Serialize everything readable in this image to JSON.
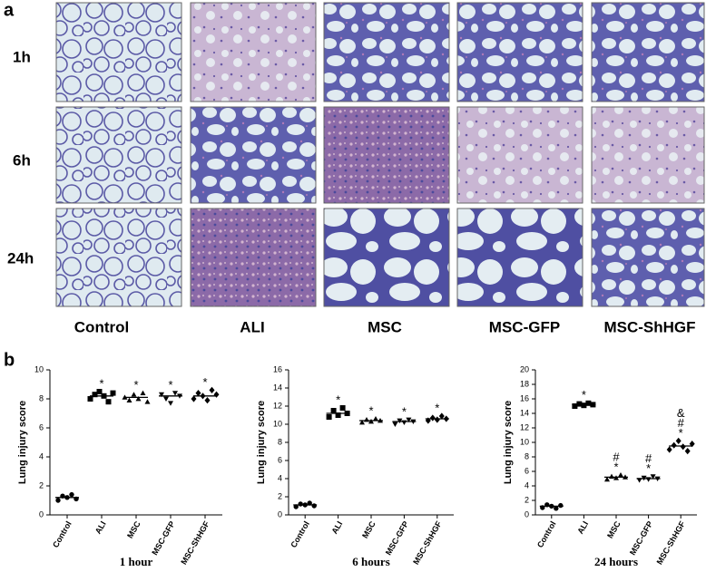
{
  "panel_a": {
    "label": "a",
    "rows": [
      "1h",
      "6h",
      "24h"
    ],
    "columns": [
      "Control",
      "ALI",
      "MSC",
      "MSC-GFP",
      "MSC-ShHGF"
    ]
  },
  "panel_b": {
    "label": "b"
  },
  "chart_data": [
    {
      "type": "dot",
      "xlabel": "1 hour",
      "ylabel": "Lung injury score",
      "categories": [
        "Control",
        "ALI",
        "MSC",
        "MSC-GFP",
        "MSC-ShHGF"
      ],
      "markers": [
        "circle",
        "square",
        "triangle",
        "triangle-down",
        "diamond"
      ],
      "color": "#000000",
      "values": [
        [
          1.0,
          1.3,
          1.2,
          1.4,
          1.1
        ],
        [
          8.0,
          8.3,
          8.5,
          8.2,
          7.8,
          8.4
        ],
        [
          8.1,
          7.9,
          8.3,
          8.0,
          8.4,
          7.8
        ],
        [
          8.3,
          8.0,
          7.7,
          8.4,
          8.2
        ],
        [
          8.0,
          8.4,
          8.2,
          7.9,
          8.6,
          8.3
        ]
      ],
      "means": [
        1.2,
        8.2,
        8.1,
        8.2,
        8.2
      ],
      "annotations": [
        null,
        [
          "*"
        ],
        [
          "*"
        ],
        [
          "*"
        ],
        [
          "*"
        ]
      ],
      "ylim": [
        0,
        10
      ],
      "yticks": [
        0,
        2,
        4,
        6,
        8,
        10
      ]
    },
    {
      "type": "dot",
      "xlabel": "6 hours",
      "ylabel": "Lung injury score",
      "categories": [
        "Control",
        "ALI",
        "MSC",
        "MSC-GFP",
        "MSC-ShHGF"
      ],
      "markers": [
        "circle",
        "square",
        "triangle",
        "triangle-down",
        "diamond"
      ],
      "color": "#000000",
      "values": [
        [
          0.9,
          1.2,
          1.1,
          1.3,
          1.0
        ],
        [
          10.8,
          11.5,
          11.0,
          11.8,
          11.2
        ],
        [
          10.2,
          10.5,
          10.3,
          10.6,
          10.4
        ],
        [
          10.0,
          10.4,
          10.2,
          10.5,
          10.3
        ],
        [
          10.4,
          10.7,
          10.5,
          10.9,
          10.6
        ]
      ],
      "means": [
        1.1,
        11.2,
        10.4,
        10.3,
        10.6
      ],
      "annotations": [
        null,
        [
          "*"
        ],
        [
          "*"
        ],
        [
          "*"
        ],
        [
          "*"
        ]
      ],
      "ylim": [
        0,
        16
      ],
      "yticks": [
        0,
        2,
        4,
        6,
        8,
        10,
        12,
        14,
        16
      ]
    },
    {
      "type": "dot",
      "xlabel": "24 hours",
      "ylabel": "Lung injury score",
      "categories": [
        "Control",
        "ALI",
        "MSC",
        "MSC-GFP",
        "MSC-ShHGF"
      ],
      "markers": [
        "circle",
        "square",
        "triangle",
        "triangle-down",
        "diamond"
      ],
      "color": "#000000",
      "values": [
        [
          1.0,
          1.4,
          1.2,
          0.9,
          1.3
        ],
        [
          15.0,
          15.3,
          15.1,
          15.4,
          15.2
        ],
        [
          4.9,
          5.3,
          5.1,
          5.5,
          5.2
        ],
        [
          4.8,
          5.1,
          4.9,
          5.3,
          5.0
        ],
        [
          9.0,
          9.6,
          10.2,
          9.4,
          8.8,
          9.8
        ]
      ],
      "means": [
        1.2,
        15.2,
        5.2,
        5.0,
        9.5
      ],
      "annotations": [
        null,
        [
          "*"
        ],
        [
          "#",
          "*"
        ],
        [
          "#",
          "*"
        ],
        [
          "&",
          "#",
          "*"
        ]
      ],
      "ylim": [
        0,
        20
      ],
      "yticks": [
        0,
        2,
        4,
        6,
        8,
        10,
        12,
        14,
        16,
        18,
        20
      ]
    }
  ]
}
